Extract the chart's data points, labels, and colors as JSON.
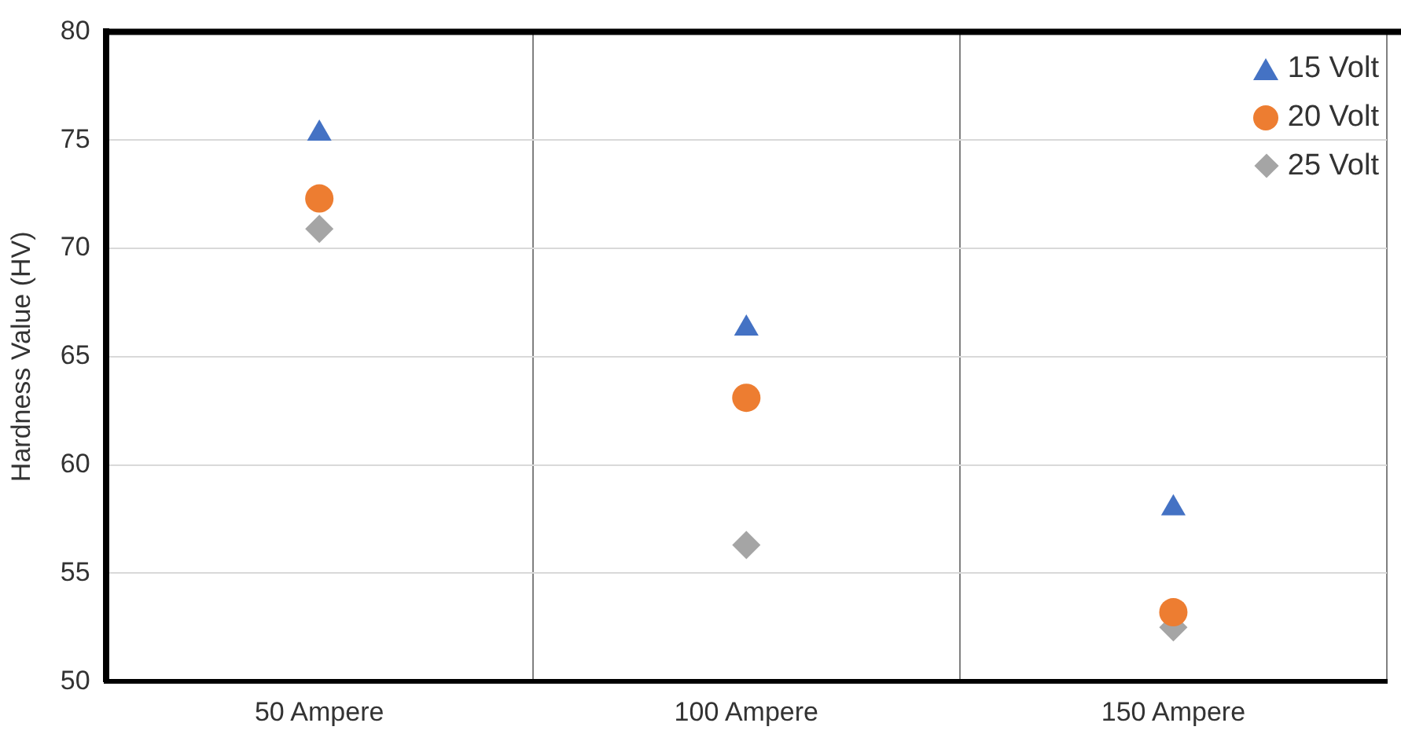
{
  "chart_data": {
    "type": "scatter",
    "ylabel": "Hardness Value (HV)",
    "categories": [
      "50 Ampere",
      "100 Ampere",
      "150 Ampere"
    ],
    "series": [
      {
        "name": "15 Volt",
        "color": "#4472c4",
        "marker": "triangle",
        "values": [
          75.3,
          66.3,
          58.0
        ]
      },
      {
        "name": "20 Volt",
        "color": "#ed7d31",
        "marker": "circle",
        "values": [
          72.3,
          63.1,
          53.2
        ]
      },
      {
        "name": "25 Volt",
        "color": "#a5a5a5",
        "marker": "diamond",
        "values": [
          70.9,
          56.3,
          52.5
        ]
      }
    ],
    "ylim": [
      50,
      80
    ],
    "yticks": [
      50,
      55,
      60,
      65,
      70,
      75,
      80
    ],
    "grid": true,
    "legend": "top right"
  }
}
